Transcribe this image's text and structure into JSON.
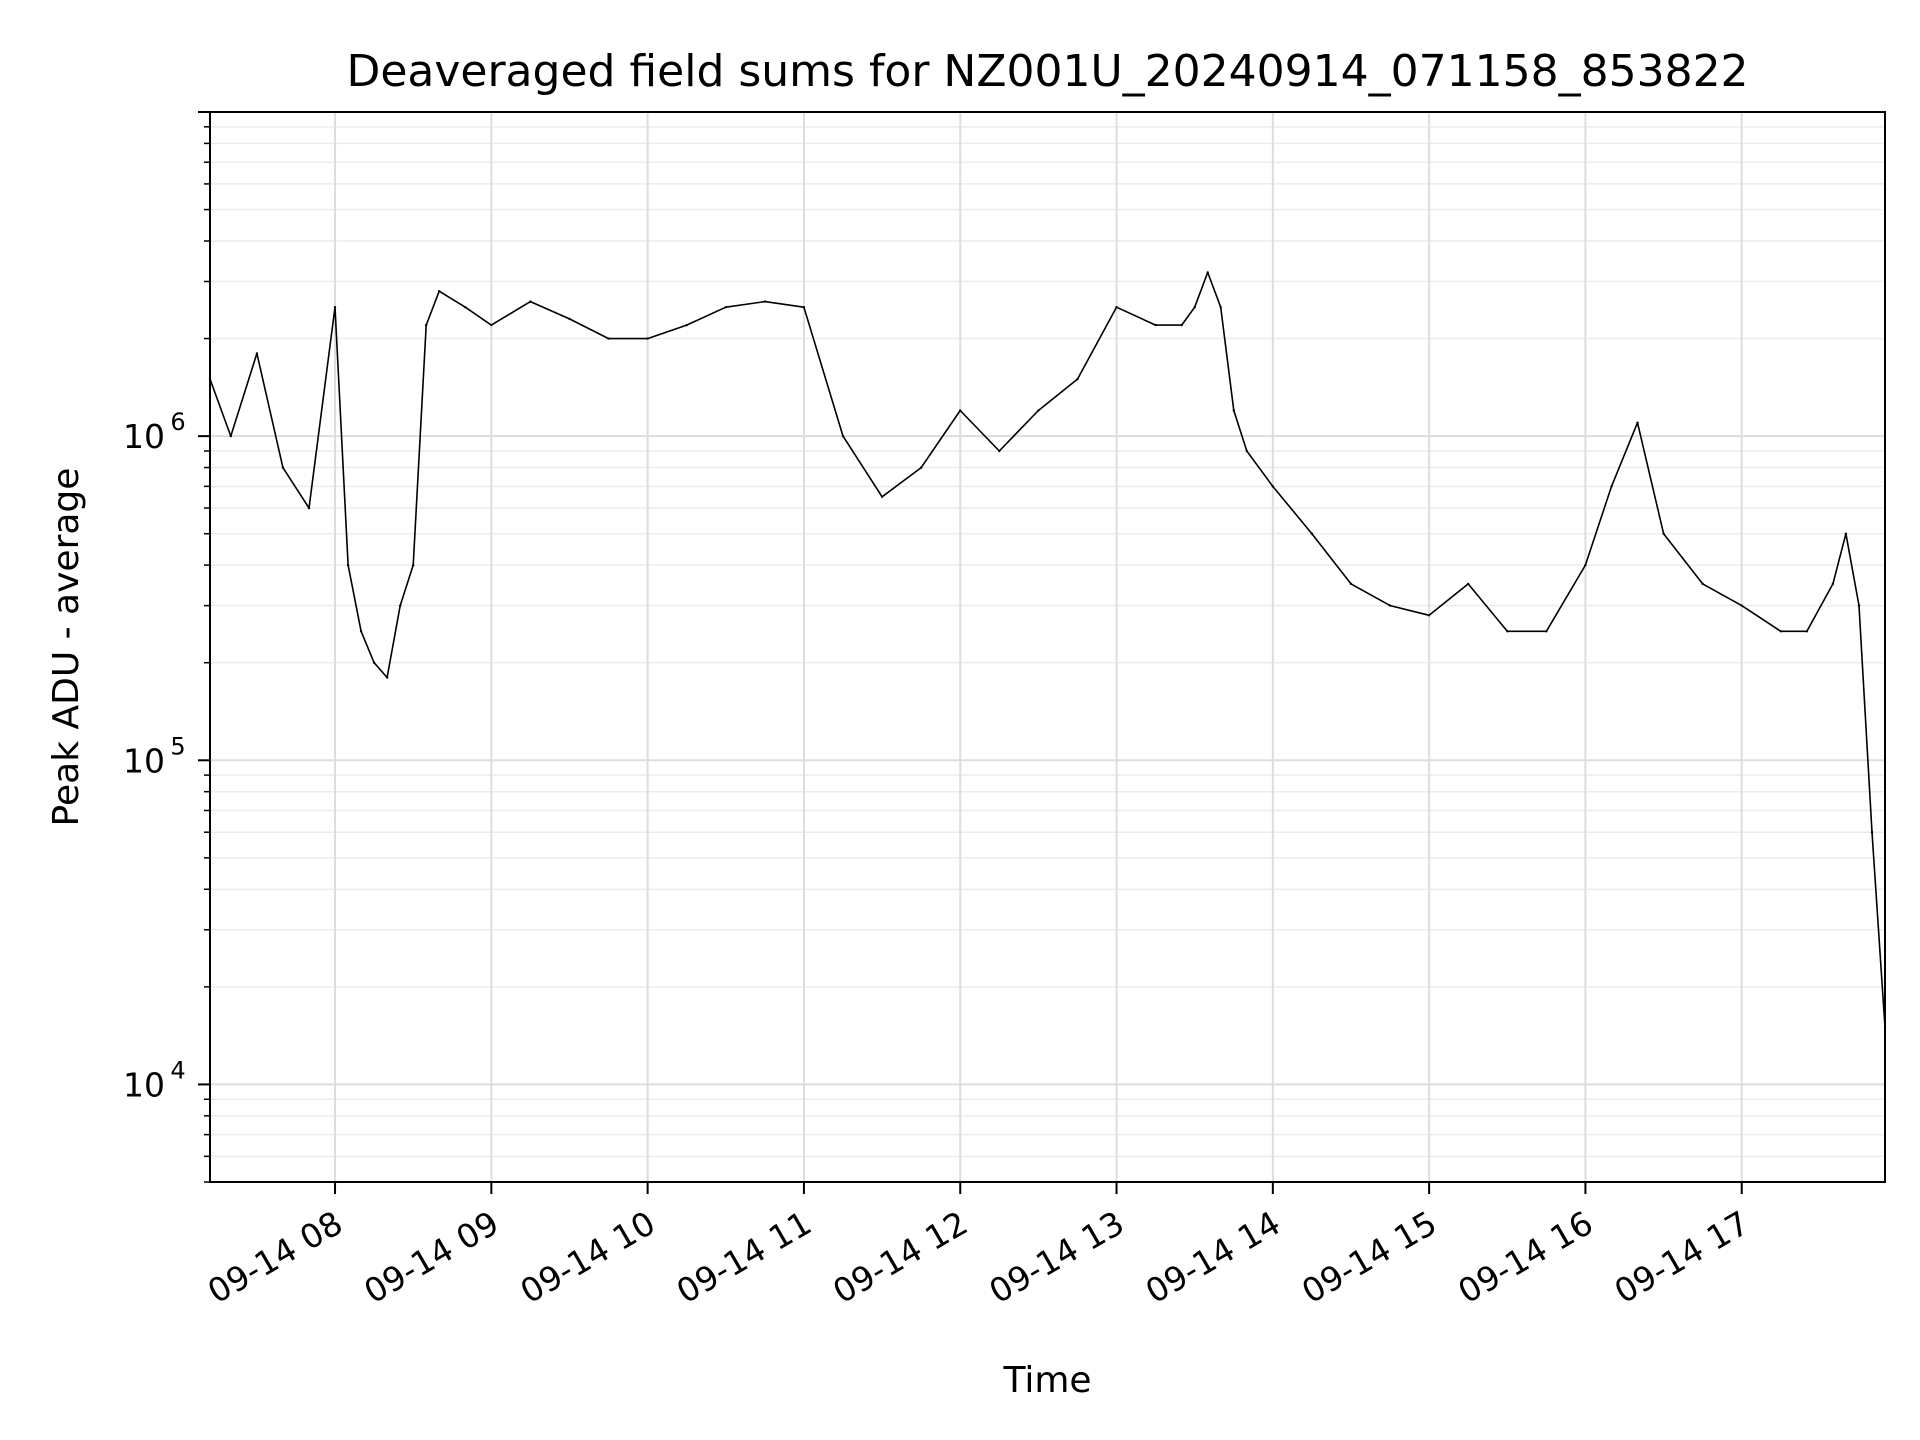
{
  "chart_data": {
    "type": "line",
    "title": "Deaveraged field sums for NZ001U_20240914_071158_853822",
    "xlabel": "Time",
    "ylabel": "Peak ADU - average",
    "yscale": "log",
    "xlim": [
      "09-14 07:12",
      "09-14 17:55"
    ],
    "ylim": [
      5000,
      10000000
    ],
    "grid": true,
    "x_ticks": [
      "09-14 08",
      "09-14 09",
      "09-14 10",
      "09-14 11",
      "09-14 12",
      "09-14 13",
      "09-14 14",
      "09-14 15",
      "09-14 16",
      "09-14 17"
    ],
    "y_ticks": [
      {
        "base": "10",
        "exp": "4",
        "value": 10000
      },
      {
        "base": "10",
        "exp": "5",
        "value": 100000
      },
      {
        "base": "10",
        "exp": "6",
        "value": 1000000
      }
    ],
    "series": [
      {
        "color": "#000000",
        "x": [
          "09-14 07:12",
          "09-14 07:20",
          "09-14 07:30",
          "09-14 07:40",
          "09-14 07:50",
          "09-14 08:00",
          "09-14 08:05",
          "09-14 08:10",
          "09-14 08:15",
          "09-14 08:20",
          "09-14 08:25",
          "09-14 08:30",
          "09-14 08:35",
          "09-14 08:40",
          "09-14 08:50",
          "09-14 09:00",
          "09-14 09:15",
          "09-14 09:30",
          "09-14 09:45",
          "09-14 10:00",
          "09-14 10:15",
          "09-14 10:30",
          "09-14 10:45",
          "09-14 11:00",
          "09-14 11:15",
          "09-14 11:30",
          "09-14 11:45",
          "09-14 12:00",
          "09-14 12:15",
          "09-14 12:30",
          "09-14 12:45",
          "09-14 13:00",
          "09-14 13:15",
          "09-14 13:25",
          "09-14 13:30",
          "09-14 13:35",
          "09-14 13:40",
          "09-14 13:45",
          "09-14 13:50",
          "09-14 14:00",
          "09-14 14:15",
          "09-14 14:30",
          "09-14 14:45",
          "09-14 15:00",
          "09-14 15:15",
          "09-14 15:30",
          "09-14 15:45",
          "09-14 16:00",
          "09-14 16:10",
          "09-14 16:20",
          "09-14 16:30",
          "09-14 16:45",
          "09-14 17:00",
          "09-14 17:15",
          "09-14 17:25",
          "09-14 17:35",
          "09-14 17:40",
          "09-14 17:45",
          "09-14 17:50",
          "09-14 17:55"
        ],
        "y": [
          1500000,
          1000000,
          1800000,
          800000,
          600000,
          2500000,
          400000,
          250000,
          200000,
          180000,
          300000,
          400000,
          2200000,
          2800000,
          2500000,
          2200000,
          2600000,
          2300000,
          2000000,
          2000000,
          2200000,
          2500000,
          2600000,
          2500000,
          1000000,
          650000,
          800000,
          1200000,
          900000,
          1200000,
          1500000,
          2500000,
          2200000,
          2200000,
          2500000,
          3200000,
          2500000,
          1200000,
          900000,
          700000,
          500000,
          350000,
          300000,
          280000,
          350000,
          250000,
          250000,
          400000,
          700000,
          1100000,
          500000,
          350000,
          300000,
          250000,
          250000,
          350000,
          500000,
          300000,
          60000,
          15000
        ]
      }
    ]
  }
}
